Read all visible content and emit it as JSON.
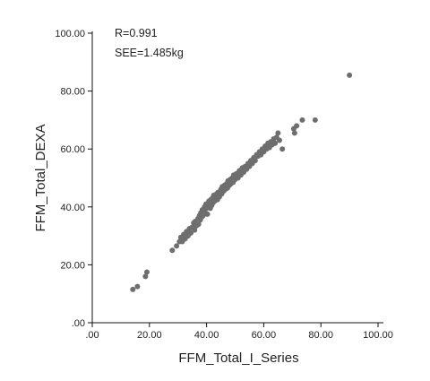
{
  "chart_data": {
    "type": "scatter",
    "title": "",
    "xlabel": "FFM_Total_I_Series",
    "ylabel": "FFM_Total_DEXA",
    "xlim": [
      0,
      100
    ],
    "ylim": [
      0,
      100
    ],
    "x_ticks": [
      ".00",
      "20.00",
      "40.00",
      "60.00",
      "80.00",
      "100.00"
    ],
    "y_ticks": [
      ".00",
      "20.00",
      "40.00",
      "60.00",
      "80.00",
      "100.00"
    ],
    "grid": false,
    "legend": "none",
    "point_color": "#6e6e6e",
    "annotations": [
      "R=0.991",
      "SEE=1.485kg"
    ],
    "series": [
      {
        "points": [
          [
            14.2,
            11.5
          ],
          [
            15.8,
            12.5
          ],
          [
            18.6,
            16.0
          ],
          [
            19.1,
            17.5
          ],
          [
            28.0,
            25.0
          ],
          [
            29.5,
            26.5
          ],
          [
            30.5,
            28.0
          ],
          [
            31.0,
            29.5
          ],
          [
            31.5,
            28.0
          ],
          [
            32.0,
            30.5
          ],
          [
            32.5,
            29.0
          ],
          [
            33.0,
            31.5
          ],
          [
            33.5,
            30.0
          ],
          [
            34.0,
            32.5
          ],
          [
            34.5,
            31.0
          ],
          [
            35.0,
            33.0
          ],
          [
            35.5,
            34.5
          ],
          [
            35.8,
            32.0
          ],
          [
            36.0,
            35.0
          ],
          [
            36.5,
            33.5
          ],
          [
            37.0,
            36.0
          ],
          [
            37.2,
            34.0
          ],
          [
            37.5,
            37.0
          ],
          [
            37.8,
            35.5
          ],
          [
            38.0,
            38.0
          ],
          [
            38.3,
            36.5
          ],
          [
            38.5,
            39.0
          ],
          [
            38.8,
            37.0
          ],
          [
            39.0,
            38.5
          ],
          [
            39.3,
            40.0
          ],
          [
            39.5,
            38.0
          ],
          [
            39.8,
            41.0
          ],
          [
            40.0,
            39.5
          ],
          [
            40.3,
            37.5
          ],
          [
            40.5,
            40.5
          ],
          [
            40.8,
            42.0
          ],
          [
            41.0,
            41.0
          ],
          [
            41.3,
            39.5
          ],
          [
            41.5,
            42.5
          ],
          [
            41.8,
            40.5
          ],
          [
            42.0,
            43.0
          ],
          [
            42.3,
            41.5
          ],
          [
            42.5,
            44.0
          ],
          [
            42.8,
            42.0
          ],
          [
            43.0,
            43.5
          ],
          [
            43.5,
            44.5
          ],
          [
            43.8,
            42.5
          ],
          [
            44.0,
            45.0
          ],
          [
            44.5,
            43.5
          ],
          [
            45.0,
            46.0
          ],
          [
            45.3,
            44.5
          ],
          [
            45.5,
            47.0
          ],
          [
            46.0,
            45.5
          ],
          [
            46.3,
            47.5
          ],
          [
            46.5,
            46.0
          ],
          [
            47.0,
            48.0
          ],
          [
            47.3,
            46.5
          ],
          [
            47.5,
            49.0
          ],
          [
            48.0,
            47.5
          ],
          [
            48.3,
            49.5
          ],
          [
            48.5,
            48.0
          ],
          [
            49.0,
            50.0
          ],
          [
            49.3,
            48.5
          ],
          [
            49.5,
            51.0
          ],
          [
            50.0,
            49.5
          ],
          [
            50.5,
            51.5
          ],
          [
            51.0,
            50.0
          ],
          [
            51.5,
            52.5
          ],
          [
            52.0,
            51.0
          ],
          [
            52.5,
            53.5
          ],
          [
            53.0,
            52.0
          ],
          [
            53.5,
            54.0
          ],
          [
            54.0,
            53.0
          ],
          [
            54.5,
            55.0
          ],
          [
            55.0,
            54.0
          ],
          [
            55.5,
            56.0
          ],
          [
            56.0,
            55.0
          ],
          [
            56.5,
            57.0
          ],
          [
            57.0,
            56.0
          ],
          [
            57.5,
            58.0
          ],
          [
            58.0,
            57.5
          ],
          [
            58.5,
            59.0
          ],
          [
            59.0,
            58.0
          ],
          [
            59.5,
            60.0
          ],
          [
            60.0,
            59.0
          ],
          [
            60.5,
            61.0
          ],
          [
            61.0,
            60.0
          ],
          [
            61.5,
            62.0
          ],
          [
            62.0,
            60.5
          ],
          [
            62.5,
            62.5
          ],
          [
            63.0,
            61.5
          ],
          [
            63.5,
            63.5
          ],
          [
            64.0,
            62.0
          ],
          [
            64.5,
            64.0
          ],
          [
            65.0,
            65.5
          ],
          [
            65.5,
            63.0
          ],
          [
            66.5,
            60.0
          ],
          [
            70.5,
            67.0
          ],
          [
            70.8,
            65.5
          ],
          [
            71.5,
            68.0
          ],
          [
            73.5,
            70.0
          ],
          [
            78.0,
            70.0
          ],
          [
            90.0,
            85.5
          ]
        ]
      }
    ]
  }
}
